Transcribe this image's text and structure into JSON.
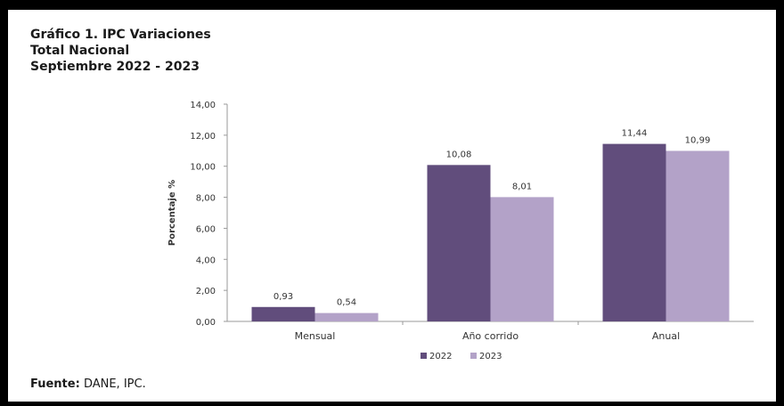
{
  "title_lines": [
    "Gráfico 1. IPC Variaciones",
    "Total Nacional",
    "Septiembre 2022 - 2023"
  ],
  "source": {
    "label": "Fuente:",
    "text": "DANE, IPC."
  },
  "colors": {
    "series_2022": "#614d7c",
    "series_2023": "#b3a2c8"
  },
  "chart_data": {
    "type": "bar",
    "categories": [
      "Mensual",
      "Año corrido",
      "Anual"
    ],
    "series": [
      {
        "name": "2022",
        "values": [
          0.93,
          10.08,
          11.44
        ],
        "labels": [
          "0,93",
          "10,08",
          "11,44"
        ]
      },
      {
        "name": "2023",
        "values": [
          0.54,
          8.01,
          10.99
        ],
        "labels": [
          "0,54",
          "8,01",
          "10,99"
        ]
      }
    ],
    "ylabel": "Porcentaje %",
    "ylim": [
      0,
      14
    ],
    "yticks": [
      0,
      2,
      4,
      6,
      8,
      10,
      12,
      14
    ],
    "ytick_labels": [
      "0,00",
      "2,00",
      "4,00",
      "6,00",
      "8,00",
      "10,00",
      "12,00",
      "14,00"
    ],
    "grid": false,
    "legend_position": "bottom-center"
  }
}
